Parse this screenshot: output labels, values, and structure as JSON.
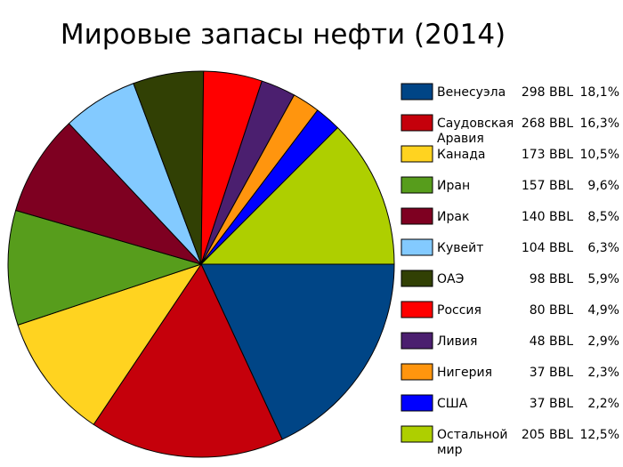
{
  "chart_data": {
    "type": "pie",
    "title": "Мировые запасы нефти (2014)",
    "legend_position": "right",
    "slices": [
      {
        "label": "Венесуэла",
        "reserve": "298 BBL",
        "value": 18.1,
        "percent": "18,1%",
        "color": "#004586"
      },
      {
        "label": "Саудовская Аравия",
        "reserve": "268 BBL",
        "value": 16.3,
        "percent": "16,3%",
        "color": "#c5000b"
      },
      {
        "label": "Канада",
        "reserve": "173 BBL",
        "value": 10.5,
        "percent": "10,5%",
        "color": "#ffd320"
      },
      {
        "label": "Иран",
        "reserve": "157 BBL",
        "value": 9.6,
        "percent": "9,6%",
        "color": "#579d1c"
      },
      {
        "label": "Ирак",
        "reserve": "140 BBL",
        "value": 8.5,
        "percent": "8,5%",
        "color": "#7e0021"
      },
      {
        "label": "Кувейт",
        "reserve": "104 BBL",
        "value": 6.3,
        "percent": "6,3%",
        "color": "#83caff"
      },
      {
        "label": "ОАЭ",
        "reserve": "98 BBL",
        "value": 5.9,
        "percent": "5,9%",
        "color": "#314004"
      },
      {
        "label": "Россия",
        "reserve": "80 BBL",
        "value": 4.9,
        "percent": "4,9%",
        "color": "#ff0000"
      },
      {
        "label": "Ливия",
        "reserve": "48 BBL",
        "value": 2.9,
        "percent": "2,9%",
        "color": "#4b1f6f"
      },
      {
        "label": "Нигерия",
        "reserve": "37 BBL",
        "value": 2.3,
        "percent": "2,3%",
        "color": "#ff950e"
      },
      {
        "label": "США",
        "reserve": "37 BBL",
        "value": 2.2,
        "percent": "2,2%",
        "color": "#0000ff"
      },
      {
        "label": "Остальной мир",
        "reserve": "205 BBL",
        "value": 12.5,
        "percent": "12,5%",
        "color": "#aecf00"
      }
    ]
  }
}
